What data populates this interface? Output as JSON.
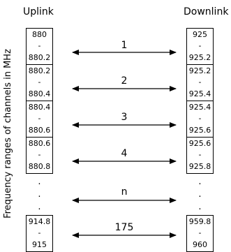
{
  "headers": {
    "uplink": "Uplink",
    "downlink": "Downlink"
  },
  "y_axis_label": "Frequency ranges of channels in MHz",
  "separator": "-",
  "ellipsis_dot": ".",
  "uplink": [
    {
      "top": "880",
      "bottom": "880.2"
    },
    {
      "top": "880.2",
      "bottom": "880.4"
    },
    {
      "top": "880.4",
      "bottom": "880.6"
    },
    {
      "top": "880.6",
      "bottom": "880.8"
    },
    {
      "top": "914.8",
      "bottom": "915"
    }
  ],
  "downlink": [
    {
      "top": "925",
      "bottom": "925.2"
    },
    {
      "top": "925.2",
      "bottom": "925.4"
    },
    {
      "top": "925.4",
      "bottom": "925.6"
    },
    {
      "top": "925.6",
      "bottom": "925.8"
    },
    {
      "top": "959.8",
      "bottom": "960"
    }
  ],
  "channels": [
    "1",
    "2",
    "3",
    "4",
    "n",
    "175"
  ]
}
